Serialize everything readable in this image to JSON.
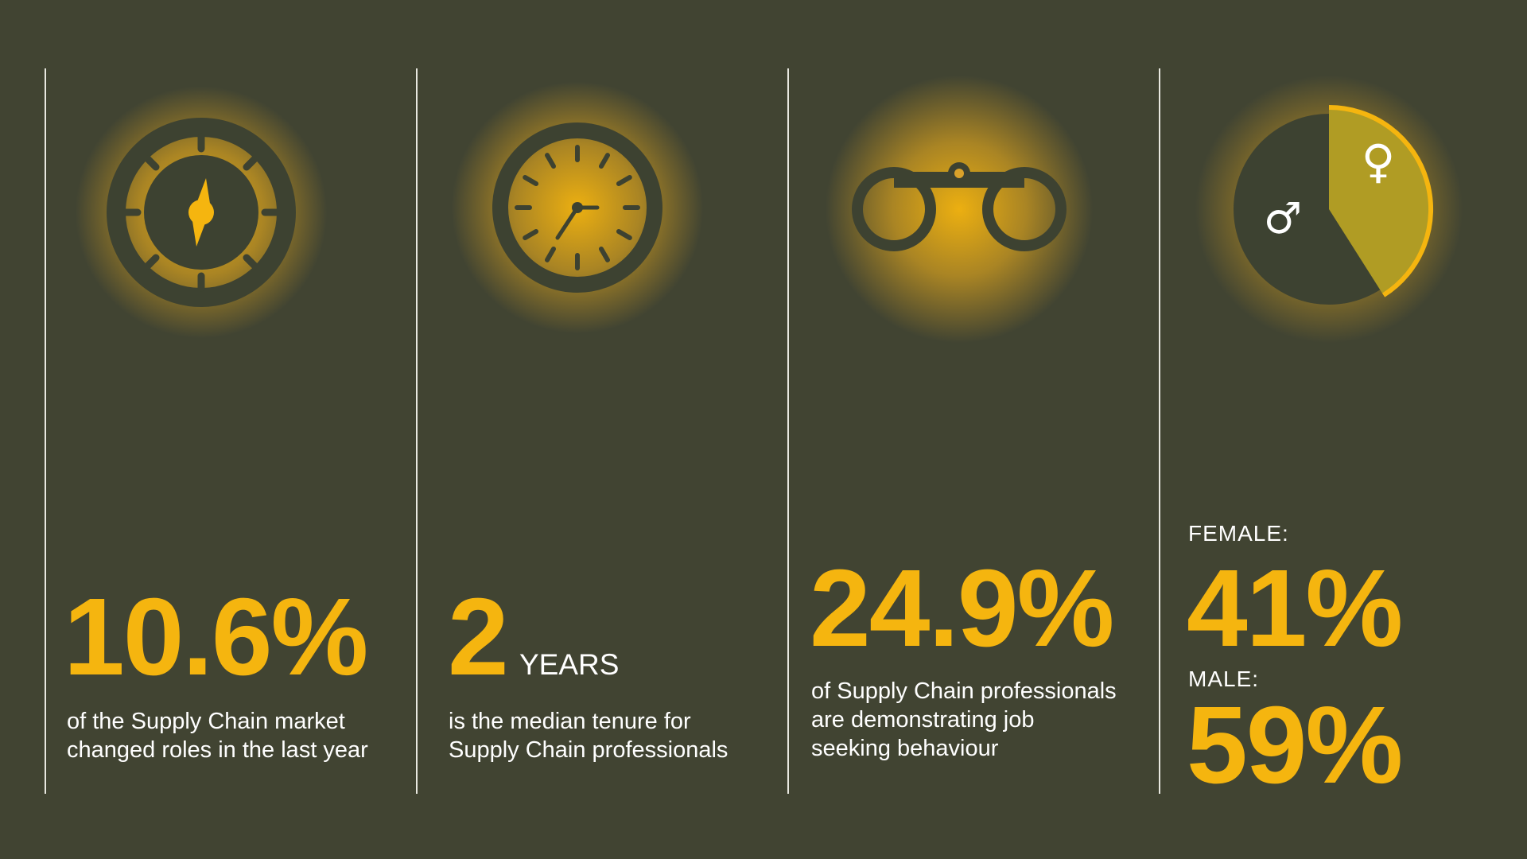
{
  "colors": {
    "background": "#414432",
    "accent": "#f5b50f",
    "icon_dark": "#3d4231",
    "female_fill": "#b09c24"
  },
  "stats": [
    {
      "icon": "compass-icon",
      "value": "10.6%",
      "description": [
        "of the Supply Chain market",
        "changed roles in the last year"
      ]
    },
    {
      "icon": "clock-icon",
      "value": "2",
      "unit": "YEARS",
      "description": [
        "is the median tenure for",
        "Supply Chain professionals"
      ]
    },
    {
      "icon": "binoculars-icon",
      "value": "24.9%",
      "description": [
        "of Supply Chain professionals",
        "are demonstrating job",
        "seeking behaviour"
      ]
    },
    {
      "icon": "gender-pie-icon",
      "female_label": "FEMALE:",
      "female_value": "41%",
      "male_label": "MALE:",
      "male_value": "59%",
      "female_share": 41,
      "male_share": 59,
      "female_symbol": "♀",
      "male_symbol": "♂"
    }
  ]
}
